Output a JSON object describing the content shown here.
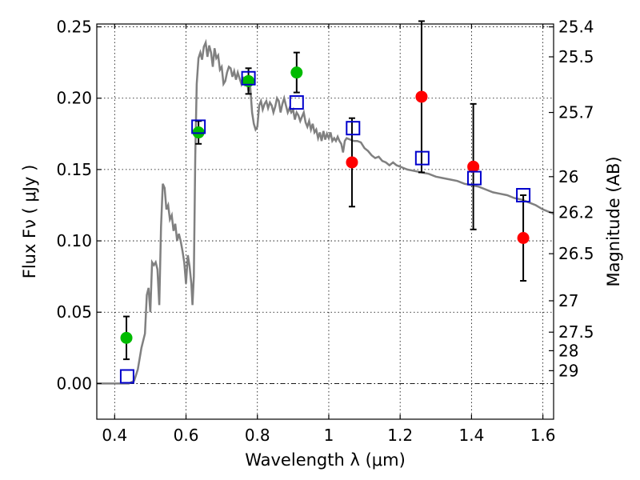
{
  "chart_data": {
    "type": "scatter",
    "xlabel": "Wavelength  λ (μm)",
    "ylabel": "Flux  Fν  ( μJy )",
    "ylabel_right": "Magnitude (AB)",
    "xlim": [
      0.35,
      1.63
    ],
    "ylim": [
      -0.025,
      0.252
    ],
    "grid": true,
    "x_ticks": [
      0.4,
      0.6,
      0.8,
      1.0,
      1.2,
      1.4,
      1.6
    ],
    "x_tick_labels": [
      "0.4",
      "0.6",
      "0.8",
      "1",
      "1.2",
      "1.4",
      "1.6"
    ],
    "y_ticks": [
      0.0,
      0.05,
      0.1,
      0.15,
      0.2,
      0.25
    ],
    "y_tick_labels": [
      "0.00",
      "0.05",
      "0.10",
      "0.15",
      "0.20",
      "0.25"
    ],
    "right_ticks": [
      {
        "label": "25.4",
        "flux": 0.25
      },
      {
        "label": "25.5",
        "flux": 0.229
      },
      {
        "label": "25.7",
        "flux": 0.19
      },
      {
        "label": "26",
        "flux": 0.145
      },
      {
        "label": "26.2",
        "flux": 0.12
      },
      {
        "label": "26.5",
        "flux": 0.091
      },
      {
        "label": "27",
        "flux": 0.058
      },
      {
        "label": "27.5",
        "flux": 0.036
      },
      {
        "label": "28",
        "flux": 0.023
      },
      {
        "label": "29",
        "flux": 0.009
      }
    ],
    "model_curve": {
      "color": "#808080",
      "points": [
        [
          0.35,
          0.0
        ],
        [
          0.44,
          0.0
        ],
        [
          0.455,
          0.002
        ],
        [
          0.465,
          0.01
        ],
        [
          0.475,
          0.025
        ],
        [
          0.485,
          0.035
        ],
        [
          0.49,
          0.062
        ],
        [
          0.495,
          0.067
        ],
        [
          0.5,
          0.05
        ],
        [
          0.505,
          0.085
        ],
        [
          0.51,
          0.083
        ],
        [
          0.515,
          0.085
        ],
        [
          0.52,
          0.08
        ],
        [
          0.525,
          0.055
        ],
        [
          0.53,
          0.11
        ],
        [
          0.535,
          0.14
        ],
        [
          0.54,
          0.137
        ],
        [
          0.545,
          0.122
        ],
        [
          0.55,
          0.125
        ],
        [
          0.555,
          0.115
        ],
        [
          0.56,
          0.118
        ],
        [
          0.565,
          0.107
        ],
        [
          0.57,
          0.112
        ],
        [
          0.575,
          0.1
        ],
        [
          0.58,
          0.105
        ],
        [
          0.585,
          0.1
        ],
        [
          0.59,
          0.093
        ],
        [
          0.595,
          0.085
        ],
        [
          0.6,
          0.07
        ],
        [
          0.605,
          0.09
        ],
        [
          0.61,
          0.082
        ],
        [
          0.615,
          0.07
        ],
        [
          0.618,
          0.055
        ],
        [
          0.622,
          0.075
        ],
        [
          0.626,
          0.16
        ],
        [
          0.63,
          0.21
        ],
        [
          0.635,
          0.228
        ],
        [
          0.64,
          0.232
        ],
        [
          0.645,
          0.227
        ],
        [
          0.65,
          0.236
        ],
        [
          0.655,
          0.239
        ],
        [
          0.66,
          0.229
        ],
        [
          0.665,
          0.237
        ],
        [
          0.67,
          0.232
        ],
        [
          0.675,
          0.222
        ],
        [
          0.68,
          0.235
        ],
        [
          0.685,
          0.228
        ],
        [
          0.69,
          0.23
        ],
        [
          0.695,
          0.22
        ],
        [
          0.7,
          0.222
        ],
        [
          0.705,
          0.21
        ],
        [
          0.71,
          0.212
        ],
        [
          0.715,
          0.218
        ],
        [
          0.72,
          0.222
        ],
        [
          0.725,
          0.221
        ],
        [
          0.73,
          0.215
        ],
        [
          0.735,
          0.219
        ],
        [
          0.74,
          0.213
        ],
        [
          0.745,
          0.218
        ],
        [
          0.75,
          0.214
        ],
        [
          0.755,
          0.21
        ],
        [
          0.76,
          0.215
        ],
        [
          0.765,
          0.21
        ],
        [
          0.77,
          0.213
        ],
        [
          0.775,
          0.205
        ],
        [
          0.78,
          0.208
        ],
        [
          0.785,
          0.19
        ],
        [
          0.79,
          0.182
        ],
        [
          0.795,
          0.178
        ],
        [
          0.8,
          0.18
        ],
        [
          0.805,
          0.195
        ],
        [
          0.81,
          0.198
        ],
        [
          0.815,
          0.192
        ],
        [
          0.82,
          0.196
        ],
        [
          0.825,
          0.198
        ],
        [
          0.83,
          0.193
        ],
        [
          0.835,
          0.197
        ],
        [
          0.84,
          0.195
        ],
        [
          0.845,
          0.19
        ],
        [
          0.85,
          0.194
        ],
        [
          0.855,
          0.2
        ],
        [
          0.86,
          0.198
        ],
        [
          0.865,
          0.19
        ],
        [
          0.87,
          0.196
        ],
        [
          0.875,
          0.2
        ],
        [
          0.88,
          0.195
        ],
        [
          0.885,
          0.19
        ],
        [
          0.89,
          0.193
        ],
        [
          0.895,
          0.19
        ],
        [
          0.9,
          0.192
        ],
        [
          0.905,
          0.185
        ],
        [
          0.91,
          0.19
        ],
        [
          0.915,
          0.188
        ],
        [
          0.92,
          0.184
        ],
        [
          0.925,
          0.187
        ],
        [
          0.93,
          0.19
        ],
        [
          0.935,
          0.183
        ],
        [
          0.94,
          0.18
        ],
        [
          0.945,
          0.184
        ],
        [
          0.95,
          0.178
        ],
        [
          0.955,
          0.182
        ],
        [
          0.96,
          0.176
        ],
        [
          0.965,
          0.178
        ],
        [
          0.97,
          0.172
        ],
        [
          0.975,
          0.176
        ],
        [
          0.98,
          0.17
        ],
        [
          0.985,
          0.177
        ],
        [
          0.99,
          0.171
        ],
        [
          0.995,
          0.175
        ],
        [
          1.0,
          0.172
        ],
        [
          1.005,
          0.176
        ],
        [
          1.01,
          0.17
        ],
        [
          1.015,
          0.172
        ],
        [
          1.02,
          0.17
        ],
        [
          1.025,
          0.173
        ],
        [
          1.03,
          0.17
        ],
        [
          1.035,
          0.168
        ],
        [
          1.04,
          0.162
        ],
        [
          1.045,
          0.17
        ],
        [
          1.05,
          0.172
        ],
        [
          1.06,
          0.171
        ],
        [
          1.07,
          0.17
        ],
        [
          1.08,
          0.17
        ],
        [
          1.09,
          0.169
        ],
        [
          1.1,
          0.165
        ],
        [
          1.11,
          0.163
        ],
        [
          1.12,
          0.16
        ],
        [
          1.13,
          0.158
        ],
        [
          1.14,
          0.159
        ],
        [
          1.15,
          0.156
        ],
        [
          1.16,
          0.155
        ],
        [
          1.17,
          0.153
        ],
        [
          1.18,
          0.155
        ],
        [
          1.19,
          0.153
        ],
        [
          1.2,
          0.152
        ],
        [
          1.21,
          0.151
        ],
        [
          1.22,
          0.15
        ],
        [
          1.24,
          0.149
        ],
        [
          1.26,
          0.148
        ],
        [
          1.28,
          0.147
        ],
        [
          1.3,
          0.145
        ],
        [
          1.32,
          0.144
        ],
        [
          1.34,
          0.143
        ],
        [
          1.36,
          0.142
        ],
        [
          1.38,
          0.14
        ],
        [
          1.4,
          0.139
        ],
        [
          1.42,
          0.138
        ],
        [
          1.44,
          0.136
        ],
        [
          1.46,
          0.134
        ],
        [
          1.48,
          0.133
        ],
        [
          1.5,
          0.132
        ],
        [
          1.52,
          0.13
        ],
        [
          1.54,
          0.129
        ],
        [
          1.56,
          0.127
        ],
        [
          1.58,
          0.125
        ],
        [
          1.6,
          0.122
        ],
        [
          1.63,
          0.119
        ]
      ]
    },
    "series": [
      {
        "marker": "circle",
        "color": "#00bb00",
        "points": [
          {
            "x": 0.433,
            "y": 0.032,
            "err": 0.015
          },
          {
            "x": 0.635,
            "y": 0.176,
            "err": 0.008
          },
          {
            "x": 0.775,
            "y": 0.212,
            "err": 0.009
          },
          {
            "x": 0.91,
            "y": 0.218,
            "err": 0.014
          }
        ]
      },
      {
        "marker": "circle",
        "color": "#ff0000",
        "points": [
          {
            "x": 1.065,
            "y": 0.155,
            "err": 0.031
          },
          {
            "x": 1.26,
            "y": 0.201,
            "err": 0.053
          },
          {
            "x": 1.405,
            "y": 0.152,
            "err": 0.044
          },
          {
            "x": 1.545,
            "y": 0.102,
            "err": 0.03
          }
        ]
      },
      {
        "marker": "open-square",
        "color": "#0000cc",
        "points": [
          {
            "x": 0.435,
            "y": 0.005
          },
          {
            "x": 0.635,
            "y": 0.18
          },
          {
            "x": 0.775,
            "y": 0.214
          },
          {
            "x": 0.91,
            "y": 0.197
          },
          {
            "x": 1.068,
            "y": 0.179
          },
          {
            "x": 1.262,
            "y": 0.158
          },
          {
            "x": 1.408,
            "y": 0.144
          },
          {
            "x": 1.545,
            "y": 0.132
          }
        ]
      }
    ]
  }
}
